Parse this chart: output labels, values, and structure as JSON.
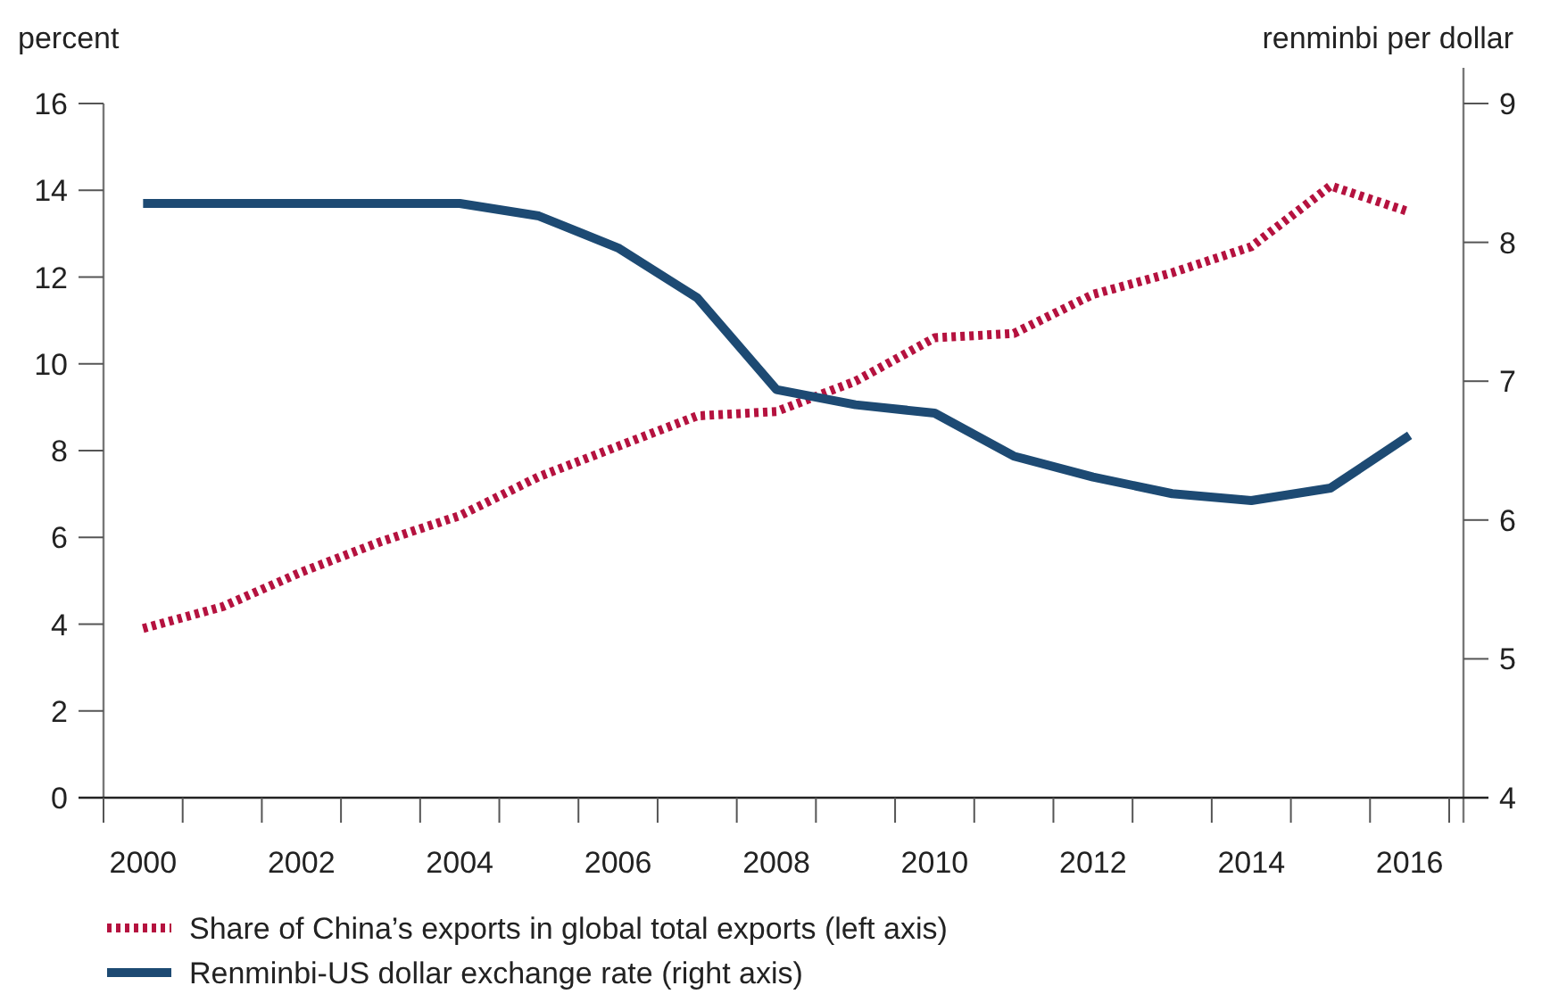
{
  "chart_data": {
    "type": "line",
    "ylabel": "percent",
    "y2label": "renminbi per dollar",
    "categories": [
      "2000",
      null,
      "2002",
      null,
      "2004",
      null,
      "2006",
      null,
      "2008",
      null,
      "2010",
      null,
      "2012",
      null,
      "2014",
      null,
      "2016"
    ],
    "ylim": [
      0,
      16
    ],
    "yticks": [
      0,
      2,
      4,
      6,
      8,
      10,
      12,
      14,
      16
    ],
    "y2lim": [
      4,
      9
    ],
    "y2ticks": [
      4,
      5,
      6,
      7,
      8,
      9
    ],
    "grid": false,
    "legend": "bottom",
    "marker": "none",
    "series": [
      {
        "name": "Share of China’s exports in global total exports (left axis)",
        "color": "#b5123f",
        "line_style": "dotted",
        "values": [
          3.9,
          4.4,
          5.2,
          5.9,
          6.5,
          7.4,
          8.1,
          8.8,
          8.9,
          9.6,
          10.6,
          10.7,
          11.6,
          12.1,
          12.7,
          14.1,
          13.5
        ]
      },
      {
        "name": "Renminbi-US dollar exchange rate (right axis)",
        "color": "#1d4a73",
        "line_style": "solid",
        "axis": "y2",
        "values": [
          8.28,
          8.28,
          8.28,
          8.28,
          8.28,
          8.19,
          7.96,
          7.6,
          6.94,
          6.83,
          6.77,
          6.46,
          6.31,
          6.19,
          6.14,
          6.23,
          6.61
        ]
      }
    ]
  }
}
